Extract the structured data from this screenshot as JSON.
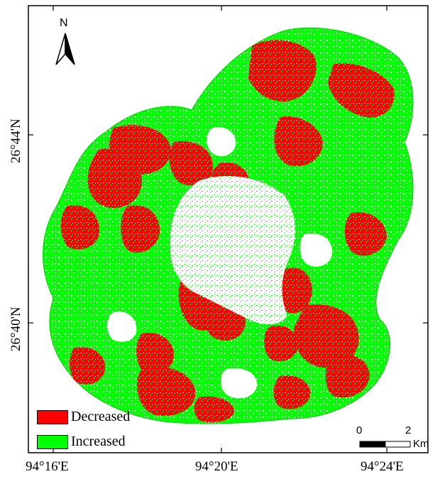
{
  "map": {
    "north_arrow_label": "N",
    "lat_labels": [
      "26°44'N",
      "26°40'N"
    ],
    "lon_labels": [
      "94°16'E",
      "94°20'E",
      "94°24'E"
    ]
  },
  "legend": {
    "items": [
      {
        "label": "Decreased",
        "color": "#ff0000"
      },
      {
        "label": "Increased",
        "color": "#00ff00"
      }
    ]
  },
  "scale_bar": {
    "tick_0": "0",
    "tick_2": "2",
    "unit": "Km"
  },
  "colors": {
    "decreased": "#ff0000",
    "increased": "#00ff00",
    "background": "#ffffff"
  }
}
